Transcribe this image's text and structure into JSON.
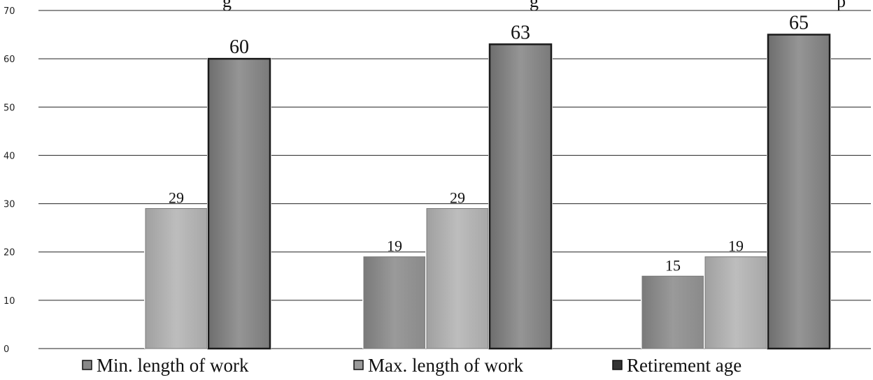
{
  "chart_data": {
    "type": "bar",
    "title_fragments": [
      "g",
      "g",
      "p"
    ],
    "categories": [
      "",
      "",
      ""
    ],
    "series": [
      {
        "name": "Min. length of work",
        "values": [
          null,
          19,
          15
        ]
      },
      {
        "name": "Max. length of work",
        "values": [
          29,
          29,
          19
        ]
      },
      {
        "name": "Retirement age",
        "values": [
          60,
          63,
          65
        ]
      }
    ],
    "ylim": [
      0,
      70
    ],
    "yticks": [
      "0",
      "10",
      "20",
      "30",
      "40",
      "50",
      "60",
      "70"
    ],
    "grid": true,
    "legend_position": "bottom",
    "colors": {
      "min_fill": "#8f8f8f",
      "max_fill": "#b3b3b3",
      "ret_fill": "#8a8a8a",
      "ret_stroke": "#1a1a1a",
      "grid": "#222222",
      "legend_min": "#888888",
      "legend_max": "#9a9a9a",
      "legend_ret": "#333333"
    }
  }
}
